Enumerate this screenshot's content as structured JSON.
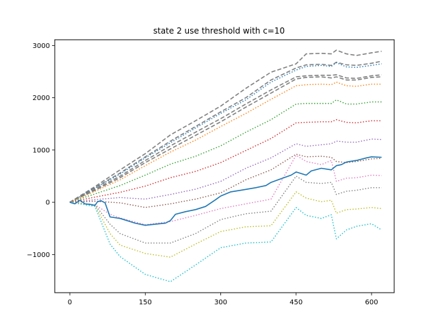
{
  "chart_data": {
    "type": "line",
    "title": "state 2 use threshold with c=10",
    "xlabel": "",
    "ylabel": "",
    "xlim": [
      -30,
      645
    ],
    "ylim": [
      -1730,
      3110
    ],
    "xticks": [
      0,
      150,
      300,
      450,
      600
    ],
    "yticks": [
      -1000,
      0,
      1000,
      2000,
      3000
    ],
    "grid": false,
    "legend": "none",
    "series": [
      {
        "style": "solid",
        "color": "#1f77b4",
        "points": [
          [
            0,
            0
          ],
          [
            10,
            -30
          ],
          [
            20,
            40
          ],
          [
            30,
            -30
          ],
          [
            40,
            -40
          ],
          [
            50,
            -60
          ],
          [
            55,
            10
          ],
          [
            62,
            30
          ],
          [
            70,
            -10
          ],
          [
            80,
            -280
          ],
          [
            100,
            -310
          ],
          [
            130,
            -400
          ],
          [
            150,
            -440
          ],
          [
            170,
            -420
          ],
          [
            190,
            -400
          ],
          [
            200,
            -350
          ],
          [
            210,
            -230
          ],
          [
            230,
            -180
          ],
          [
            250,
            -140
          ],
          [
            270,
            -80
          ],
          [
            290,
            50
          ],
          [
            300,
            120
          ],
          [
            320,
            200
          ],
          [
            340,
            230
          ],
          [
            370,
            280
          ],
          [
            390,
            320
          ],
          [
            400,
            380
          ],
          [
            420,
            450
          ],
          [
            440,
            520
          ],
          [
            450,
            580
          ],
          [
            470,
            520
          ],
          [
            480,
            600
          ],
          [
            500,
            650
          ],
          [
            520,
            620
          ],
          [
            530,
            700
          ],
          [
            540,
            720
          ],
          [
            550,
            770
          ],
          [
            570,
            800
          ],
          [
            590,
            850
          ],
          [
            600,
            870
          ],
          [
            620,
            860
          ]
        ]
      },
      {
        "style": "dashed",
        "color": "#808080",
        "points": [
          [
            0,
            0
          ],
          [
            50,
            300
          ],
          [
            100,
            620
          ],
          [
            150,
            930
          ],
          [
            200,
            1290
          ],
          [
            250,
            1560
          ],
          [
            300,
            1840
          ],
          [
            350,
            2180
          ],
          [
            400,
            2490
          ],
          [
            450,
            2650
          ],
          [
            470,
            2840
          ],
          [
            500,
            2850
          ],
          [
            520,
            2840
          ],
          [
            530,
            2910
          ],
          [
            550,
            2840
          ],
          [
            570,
            2810
          ],
          [
            600,
            2860
          ],
          [
            620,
            2890
          ]
        ]
      },
      {
        "style": "dashed",
        "color": "#808080",
        "points": [
          [
            0,
            0
          ],
          [
            50,
            280
          ],
          [
            100,
            560
          ],
          [
            150,
            870
          ],
          [
            200,
            1170
          ],
          [
            250,
            1450
          ],
          [
            300,
            1730
          ],
          [
            350,
            2000
          ],
          [
            400,
            2340
          ],
          [
            450,
            2570
          ],
          [
            470,
            2630
          ],
          [
            500,
            2640
          ],
          [
            520,
            2620
          ],
          [
            530,
            2680
          ],
          [
            550,
            2630
          ],
          [
            570,
            2620
          ],
          [
            600,
            2660
          ],
          [
            620,
            2700
          ]
        ]
      },
      {
        "style": "dotted",
        "color": "#1f77b4",
        "points": [
          [
            0,
            0
          ],
          [
            50,
            270
          ],
          [
            100,
            540
          ],
          [
            150,
            850
          ],
          [
            200,
            1140
          ],
          [
            250,
            1420
          ],
          [
            300,
            1700
          ],
          [
            350,
            1960
          ],
          [
            400,
            2300
          ],
          [
            450,
            2530
          ],
          [
            470,
            2600
          ],
          [
            500,
            2620
          ],
          [
            520,
            2600
          ],
          [
            530,
            2670
          ],
          [
            550,
            2590
          ],
          [
            570,
            2580
          ],
          [
            600,
            2620
          ],
          [
            620,
            2650
          ]
        ]
      },
      {
        "style": "dashed",
        "color": "#808080",
        "points": [
          [
            0,
            0
          ],
          [
            50,
            250
          ],
          [
            100,
            500
          ],
          [
            150,
            800
          ],
          [
            200,
            1080
          ],
          [
            250,
            1340
          ],
          [
            300,
            1600
          ],
          [
            350,
            1880
          ],
          [
            400,
            2150
          ],
          [
            450,
            2400
          ],
          [
            470,
            2420
          ],
          [
            500,
            2430
          ],
          [
            520,
            2430
          ],
          [
            530,
            2440
          ],
          [
            550,
            2380
          ],
          [
            570,
            2370
          ],
          [
            600,
            2420
          ],
          [
            620,
            2440
          ]
        ]
      },
      {
        "style": "dashed",
        "color": "#808080",
        "points": [
          [
            0,
            0
          ],
          [
            50,
            230
          ],
          [
            100,
            470
          ],
          [
            150,
            760
          ],
          [
            200,
            1020
          ],
          [
            250,
            1280
          ],
          [
            300,
            1540
          ],
          [
            350,
            1820
          ],
          [
            400,
            2090
          ],
          [
            450,
            2360
          ],
          [
            470,
            2390
          ],
          [
            500,
            2400
          ],
          [
            520,
            2380
          ],
          [
            530,
            2400
          ],
          [
            550,
            2340
          ],
          [
            570,
            2340
          ],
          [
            600,
            2390
          ],
          [
            620,
            2400
          ]
        ]
      },
      {
        "style": "dotted",
        "color": "#ff7f0e",
        "points": [
          [
            0,
            0
          ],
          [
            50,
            210
          ],
          [
            100,
            430
          ],
          [
            150,
            700
          ],
          [
            200,
            960
          ],
          [
            250,
            1190
          ],
          [
            300,
            1450
          ],
          [
            350,
            1700
          ],
          [
            400,
            1970
          ],
          [
            450,
            2230
          ],
          [
            470,
            2250
          ],
          [
            500,
            2260
          ],
          [
            520,
            2250
          ],
          [
            530,
            2300
          ],
          [
            550,
            2230
          ],
          [
            570,
            2220
          ],
          [
            600,
            2260
          ],
          [
            620,
            2260
          ]
        ]
      },
      {
        "style": "dotted",
        "color": "#2ca02c",
        "points": [
          [
            0,
            0
          ],
          [
            50,
            160
          ],
          [
            100,
            320
          ],
          [
            150,
            520
          ],
          [
            200,
            730
          ],
          [
            250,
            880
          ],
          [
            300,
            1080
          ],
          [
            350,
            1340
          ],
          [
            400,
            1580
          ],
          [
            450,
            1880
          ],
          [
            470,
            1890
          ],
          [
            500,
            1890
          ],
          [
            520,
            1890
          ],
          [
            530,
            1960
          ],
          [
            550,
            1880
          ],
          [
            570,
            1880
          ],
          [
            600,
            1920
          ],
          [
            620,
            1920
          ]
        ]
      },
      {
        "style": "dotted",
        "color": "#d62728",
        "points": [
          [
            0,
            0
          ],
          [
            50,
            100
          ],
          [
            100,
            190
          ],
          [
            150,
            310
          ],
          [
            200,
            470
          ],
          [
            250,
            590
          ],
          [
            300,
            760
          ],
          [
            350,
            990
          ],
          [
            400,
            1220
          ],
          [
            450,
            1520
          ],
          [
            470,
            1530
          ],
          [
            500,
            1540
          ],
          [
            520,
            1540
          ],
          [
            530,
            1580
          ],
          [
            550,
            1530
          ],
          [
            570,
            1520
          ],
          [
            600,
            1560
          ],
          [
            620,
            1560
          ]
        ]
      },
      {
        "style": "dotted",
        "color": "#9467bd",
        "points": [
          [
            0,
            0
          ],
          [
            50,
            50
          ],
          [
            100,
            90
          ],
          [
            150,
            60
          ],
          [
            200,
            150
          ],
          [
            250,
            250
          ],
          [
            300,
            400
          ],
          [
            350,
            650
          ],
          [
            400,
            850
          ],
          [
            450,
            1120
          ],
          [
            470,
            1070
          ],
          [
            500,
            1100
          ],
          [
            520,
            1120
          ],
          [
            530,
            1170
          ],
          [
            550,
            1150
          ],
          [
            570,
            1150
          ],
          [
            600,
            1210
          ],
          [
            620,
            1200
          ]
        ]
      },
      {
        "style": "dotted",
        "color": "#8c564b",
        "points": [
          [
            0,
            0
          ],
          [
            50,
            20
          ],
          [
            100,
            -10
          ],
          [
            150,
            -100
          ],
          [
            200,
            -30
          ],
          [
            250,
            60
          ],
          [
            300,
            180
          ],
          [
            350,
            430
          ],
          [
            400,
            620
          ],
          [
            450,
            920
          ],
          [
            470,
            870
          ],
          [
            500,
            880
          ],
          [
            520,
            860
          ],
          [
            530,
            780
          ],
          [
            550,
            760
          ],
          [
            570,
            780
          ],
          [
            600,
            830
          ],
          [
            620,
            840
          ]
        ]
      },
      {
        "style": "dotted",
        "color": "#e377c2",
        "points": [
          [
            0,
            0
          ],
          [
            50,
            -50
          ],
          [
            80,
            -230
          ],
          [
            100,
            -300
          ],
          [
            150,
            -430
          ],
          [
            200,
            -370
          ],
          [
            250,
            -250
          ],
          [
            300,
            -120
          ],
          [
            350,
            -30
          ],
          [
            400,
            60
          ],
          [
            450,
            900
          ],
          [
            470,
            780
          ],
          [
            500,
            720
          ],
          [
            520,
            800
          ],
          [
            530,
            400
          ],
          [
            550,
            460
          ],
          [
            570,
            470
          ],
          [
            600,
            520
          ],
          [
            620,
            510
          ]
        ]
      },
      {
        "style": "dotted",
        "color": "#7f7f7f",
        "points": [
          [
            0,
            0
          ],
          [
            50,
            -50
          ],
          [
            80,
            -420
          ],
          [
            100,
            -600
          ],
          [
            150,
            -780
          ],
          [
            200,
            -780
          ],
          [
            250,
            -600
          ],
          [
            300,
            -330
          ],
          [
            350,
            -220
          ],
          [
            400,
            -170
          ],
          [
            450,
            500
          ],
          [
            470,
            380
          ],
          [
            500,
            360
          ],
          [
            520,
            380
          ],
          [
            530,
            150
          ],
          [
            550,
            210
          ],
          [
            570,
            230
          ],
          [
            600,
            280
          ],
          [
            620,
            280
          ]
        ]
      },
      {
        "style": "dotted",
        "color": "#bcbd22",
        "points": [
          [
            0,
            0
          ],
          [
            50,
            -60
          ],
          [
            80,
            -600
          ],
          [
            100,
            -820
          ],
          [
            150,
            -980
          ],
          [
            200,
            -1050
          ],
          [
            250,
            -800
          ],
          [
            300,
            -560
          ],
          [
            350,
            -470
          ],
          [
            400,
            -450
          ],
          [
            450,
            200
          ],
          [
            470,
            80
          ],
          [
            500,
            10
          ],
          [
            520,
            40
          ],
          [
            530,
            -210
          ],
          [
            550,
            -140
          ],
          [
            570,
            -130
          ],
          [
            600,
            -100
          ],
          [
            620,
            -120
          ]
        ]
      },
      {
        "style": "dotted",
        "color": "#17becf",
        "points": [
          [
            0,
            0
          ],
          [
            50,
            -80
          ],
          [
            80,
            -800
          ],
          [
            100,
            -1040
          ],
          [
            150,
            -1380
          ],
          [
            200,
            -1520
          ],
          [
            250,
            -1200
          ],
          [
            300,
            -870
          ],
          [
            350,
            -780
          ],
          [
            400,
            -760
          ],
          [
            450,
            -100
          ],
          [
            470,
            -250
          ],
          [
            500,
            -310
          ],
          [
            520,
            -240
          ],
          [
            530,
            -700
          ],
          [
            550,
            -530
          ],
          [
            570,
            -460
          ],
          [
            600,
            -410
          ],
          [
            620,
            -530
          ]
        ]
      }
    ]
  }
}
